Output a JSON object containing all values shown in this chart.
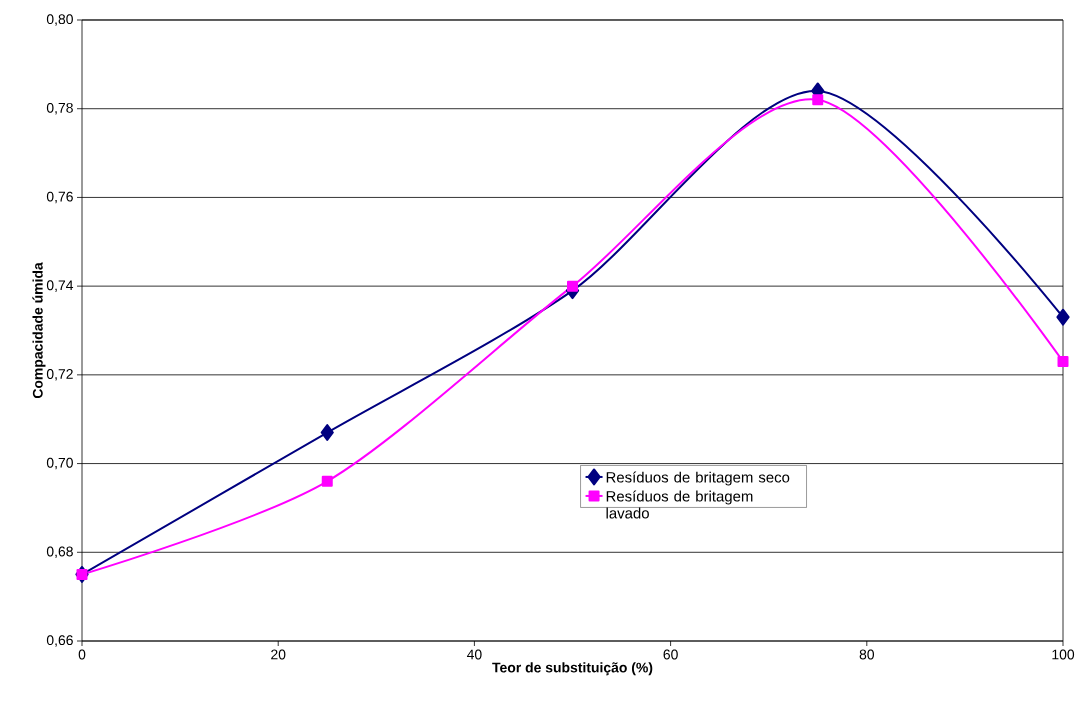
{
  "chart_data": {
    "type": "line",
    "xlabel": "Teor de substituição (%)",
    "ylabel": "Compacidade úmida",
    "x": [
      0,
      25,
      50,
      75,
      100
    ],
    "series": [
      {
        "name": "Resíduos de britagem seco",
        "color": "#000080",
        "marker": "diamond",
        "values": [
          0.675,
          0.707,
          0.739,
          0.784,
          0.733
        ]
      },
      {
        "name": "Resíduos de britagem lavado",
        "color": "#ff00ff",
        "marker": "square",
        "values": [
          0.675,
          0.696,
          0.74,
          0.782,
          0.723
        ]
      }
    ],
    "xlim": [
      0,
      100
    ],
    "xticks": [
      0,
      20,
      40,
      60,
      80,
      100
    ],
    "ylim": [
      0.66,
      0.8
    ],
    "yticks": [
      {
        "value": 0.66,
        "label": "0,66"
      },
      {
        "value": 0.68,
        "label": "0,68"
      },
      {
        "value": 0.7,
        "label": "0,70"
      },
      {
        "value": 0.72,
        "label": "0,72"
      },
      {
        "value": 0.74,
        "label": "0,74"
      },
      {
        "value": 0.76,
        "label": "0,76"
      },
      {
        "value": 0.78,
        "label": "0,78"
      },
      {
        "value": 0.8,
        "label": "0,80"
      }
    ],
    "grid": "y",
    "legend": "right"
  }
}
